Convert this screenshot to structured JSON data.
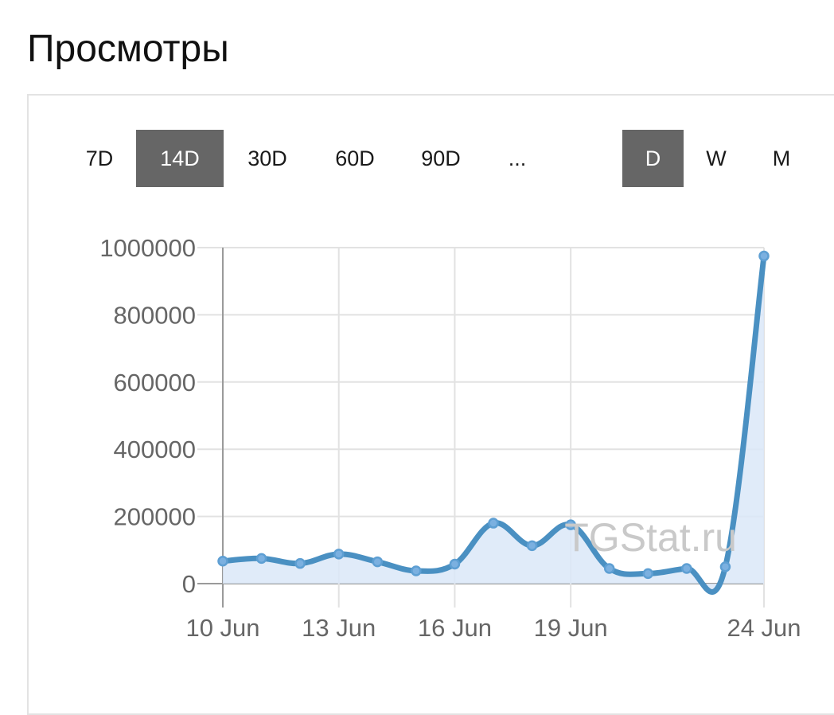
{
  "page": {
    "title": "Просмотры"
  },
  "range_buttons": [
    {
      "label": "7D",
      "active": false
    },
    {
      "label": "14D",
      "active": true
    },
    {
      "label": "30D",
      "active": false
    },
    {
      "label": "60D",
      "active": false
    },
    {
      "label": "90D",
      "active": false
    },
    {
      "label": "...",
      "active": false
    }
  ],
  "period_buttons": [
    {
      "label": "D",
      "active": true
    },
    {
      "label": "W",
      "active": false
    },
    {
      "label": "M",
      "active": false
    }
  ],
  "watermark": "TGStat.ru",
  "colors": {
    "line": "#4a90c2",
    "fill": "#dbe8f8",
    "point": "#7bb0e0",
    "active_button": "#666666"
  },
  "chart_data": {
    "type": "area",
    "x": [
      "10 Jun",
      "11 Jun",
      "12 Jun",
      "13 Jun",
      "14 Jun",
      "15 Jun",
      "16 Jun",
      "17 Jun",
      "18 Jun",
      "19 Jun",
      "20 Jun",
      "21 Jun",
      "22 Jun",
      "23 Jun",
      "24 Jun"
    ],
    "x_tick_labels": [
      "10 Jun",
      "13 Jun",
      "16 Jun",
      "19 Jun",
      "24 Jun"
    ],
    "series": [
      {
        "values": [
          67000,
          75000,
          60000,
          88000,
          65000,
          38000,
          58000,
          180000,
          113000,
          175000,
          45000,
          30000,
          45000,
          50000,
          975000
        ]
      }
    ],
    "y_ticks": [
      0,
      200000,
      400000,
      600000,
      800000,
      1000000
    ],
    "ylim": [
      0,
      1000000
    ],
    "grid": true,
    "title": "",
    "xlabel": "",
    "ylabel": ""
  }
}
